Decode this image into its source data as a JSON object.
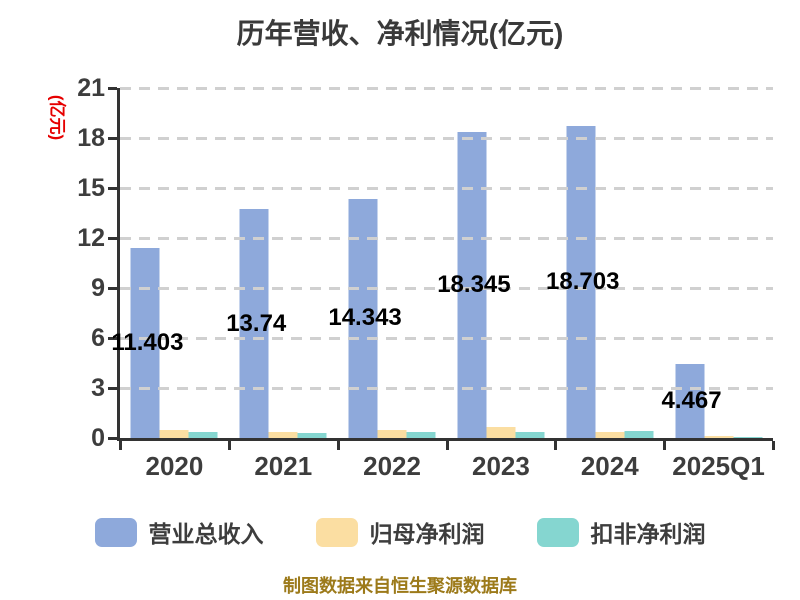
{
  "chart_data": {
    "type": "bar",
    "title": "历年营收、净利情况(亿元)",
    "unit_label": "(亿元)",
    "categories": [
      "2020",
      "2021",
      "2022",
      "2023",
      "2024",
      "2025Q1"
    ],
    "series": [
      {
        "name": "营业总收入",
        "color": "#8EA9DB",
        "values": [
          11.403,
          13.74,
          14.343,
          18.345,
          18.703,
          4.467
        ]
      },
      {
        "name": "归母净利润",
        "color": "#FBDEA2",
        "values": [
          0.5,
          0.35,
          0.5,
          0.65,
          0.35,
          0.15
        ]
      },
      {
        "name": "扣非净利润",
        "color": "#85D6D0",
        "values": [
          0.35,
          0.3,
          0.35,
          0.35,
          0.4,
          0.08
        ]
      }
    ],
    "bar_value_labels": [
      "11.403",
      "13.74",
      "14.343",
      "18.345",
      "18.703",
      "4.467"
    ],
    "y_ticks": [
      0,
      3,
      6,
      9,
      12,
      15,
      18,
      21
    ],
    "ylim": [
      0,
      21
    ],
    "grid": "horizontal-dashed",
    "legend_position": "bottom"
  },
  "footer": {
    "note": "制图数据来自恒生聚源数据库"
  },
  "colors": {
    "revenue_bar": "#8EA9DB",
    "net_profit_bar": "#FBDEA2",
    "non_gaap_bar": "#85D6D0",
    "unit_label": "#E60000",
    "footer_text": "#9C7A1A",
    "axis": "#333333",
    "gridline": "#D0D0D0"
  }
}
